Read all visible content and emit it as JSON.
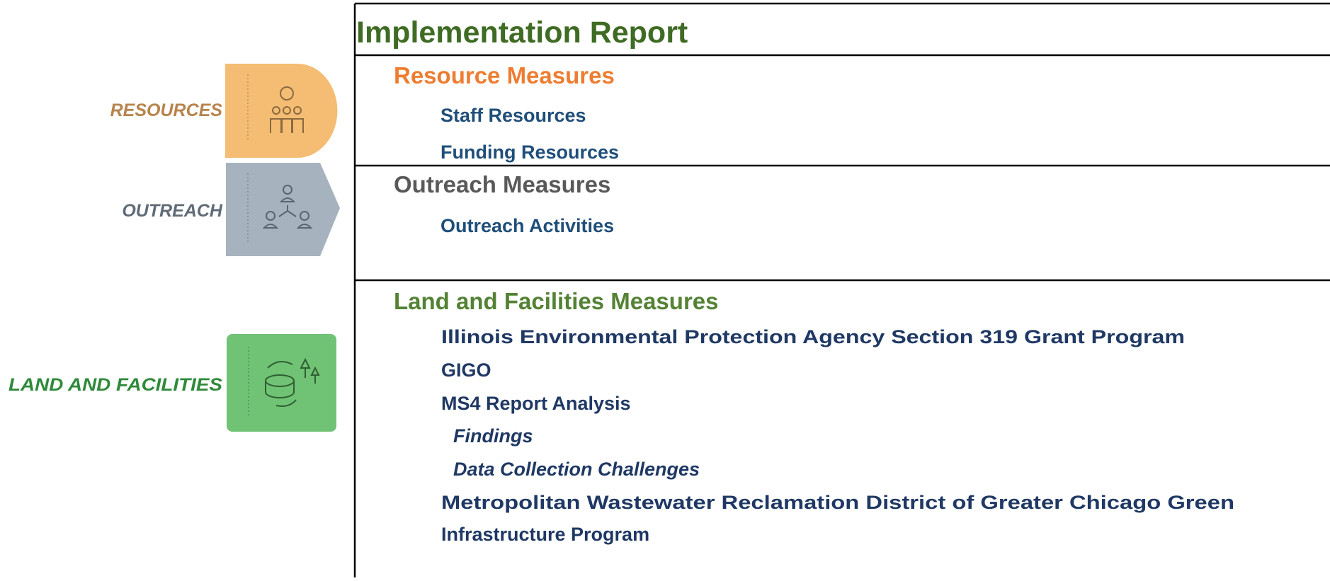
{
  "sidebar": {
    "labels": [
      "RESOURCES",
      "OUTREACH",
      "LAND AND FACILITIES"
    ]
  },
  "report": {
    "title": "Implementation Report",
    "sections": [
      {
        "title": "Resource Measures",
        "items": [
          "Staff Resources",
          "Funding Resources"
        ]
      },
      {
        "title": "Outreach Measures",
        "items": [
          "Outreach Activities"
        ]
      },
      {
        "title": "Land and Facilities Measures",
        "items": [
          "Illinois Environmental Protection Agency Section 319 Grant Program",
          "GIGO",
          "MS4 Report Analysis"
        ],
        "subitems": [
          "Findings",
          "Data Collection Challenges"
        ],
        "items_after": [
          "Metropolitan Wastewater Reclamation District of Greater Chicago Green",
          "Infrastructure Program"
        ]
      }
    ]
  }
}
